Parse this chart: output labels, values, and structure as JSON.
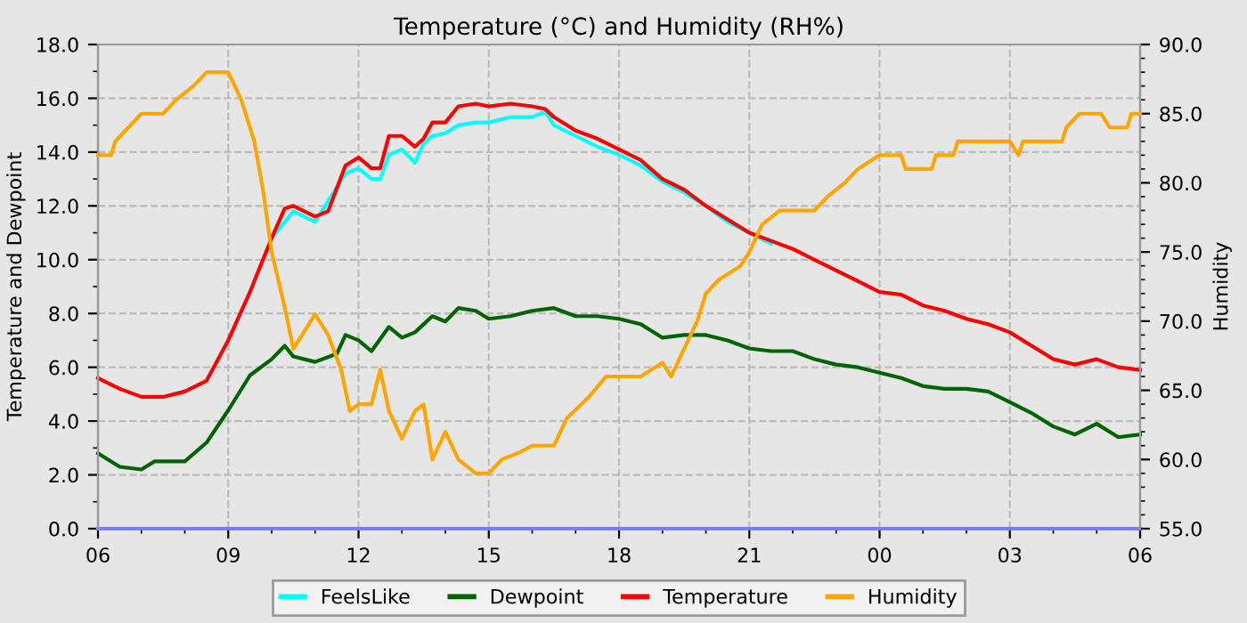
{
  "chart_data": {
    "type": "line",
    "title": "Temperature (°C) and Humidity (RH%)",
    "ylabel": "Temperature and Dewpoint",
    "y2label": "Humidity",
    "xlim": [
      6,
      30
    ],
    "xticks": [
      {
        "value": 6,
        "label": "06"
      },
      {
        "value": 9,
        "label": "09"
      },
      {
        "value": 12,
        "label": "12"
      },
      {
        "value": 15,
        "label": "15"
      },
      {
        "value": 18,
        "label": "18"
      },
      {
        "value": 21,
        "label": "21"
      },
      {
        "value": 24,
        "label": "00"
      },
      {
        "value": 27,
        "label": "03"
      },
      {
        "value": 30,
        "label": "06"
      }
    ],
    "ylim": [
      0,
      18
    ],
    "yticks": [
      {
        "value": 0,
        "label": "0.0"
      },
      {
        "value": 2,
        "label": "2.0"
      },
      {
        "value": 4,
        "label": "4.0"
      },
      {
        "value": 6,
        "label": "6.0"
      },
      {
        "value": 8,
        "label": "8.0"
      },
      {
        "value": 10,
        "label": "10.0"
      },
      {
        "value": 12,
        "label": "12.0"
      },
      {
        "value": 14,
        "label": "14.0"
      },
      {
        "value": 16,
        "label": "16.0"
      },
      {
        "value": 18,
        "label": "18.0"
      }
    ],
    "y2lim": [
      55,
      90
    ],
    "y2ticks": [
      {
        "value": 55,
        "label": "55.0"
      },
      {
        "value": 60,
        "label": "60.0"
      },
      {
        "value": 65,
        "label": "65.0"
      },
      {
        "value": 70,
        "label": "70.0"
      },
      {
        "value": 75,
        "label": "75.0"
      },
      {
        "value": 80,
        "label": "80.0"
      },
      {
        "value": 85,
        "label": "85.0"
      },
      {
        "value": 90,
        "label": "90.0"
      }
    ],
    "grid": true,
    "legend": "bottom",
    "marker": "none",
    "line_style": "solid",
    "series": [
      {
        "color": "#7b7bff",
        "x": [
          6,
          30
        ],
        "values": [
          0,
          0
        ]
      },
      {
        "name": "FeelsLike",
        "color": "#00ffff",
        "x": [
          10.0,
          10.5,
          11.0,
          11.7,
          12.0,
          12.3,
          12.5,
          12.7,
          13.0,
          13.3,
          13.5,
          13.7,
          14.0,
          14.3,
          14.7,
          15.0,
          15.5,
          16.0,
          16.3,
          16.5,
          17.0,
          17.5,
          18.0,
          18.5,
          19.0,
          19.5,
          20.0,
          20.5,
          21.0,
          21.5
        ],
        "values": [
          10.8,
          11.8,
          11.4,
          13.2,
          13.4,
          13.0,
          13.0,
          13.9,
          14.1,
          13.6,
          14.3,
          14.6,
          14.7,
          15.0,
          15.1,
          15.1,
          15.3,
          15.3,
          15.5,
          15.0,
          14.6,
          14.2,
          13.9,
          13.5,
          12.9,
          12.5,
          12.0,
          11.4,
          11.0,
          10.6
        ]
      },
      {
        "name": "Dewpoint",
        "color": "#006400",
        "x": [
          6.0,
          6.5,
          7.0,
          7.3,
          8.0,
          8.5,
          9.0,
          9.5,
          10.0,
          10.3,
          10.5,
          11.0,
          11.5,
          11.7,
          12.0,
          12.3,
          12.7,
          13.0,
          13.3,
          13.7,
          14.0,
          14.3,
          14.7,
          15.0,
          15.5,
          16.0,
          16.5,
          17.0,
          17.5,
          18.0,
          18.5,
          19.0,
          19.5,
          20.0,
          20.5,
          21.0,
          21.5,
          22.0,
          22.5,
          23.0,
          23.5,
          24.0,
          24.5,
          25.0,
          25.5,
          26.0,
          26.5,
          27.0,
          27.5,
          28.0,
          28.5,
          29.0,
          29.5,
          30.0
        ],
        "values": [
          2.8,
          2.3,
          2.2,
          2.5,
          2.5,
          3.2,
          4.4,
          5.7,
          6.3,
          6.8,
          6.4,
          6.2,
          6.5,
          7.2,
          7.0,
          6.6,
          7.5,
          7.1,
          7.3,
          7.9,
          7.7,
          8.2,
          8.1,
          7.8,
          7.9,
          8.1,
          8.2,
          7.9,
          7.9,
          7.8,
          7.6,
          7.1,
          7.2,
          7.2,
          7.0,
          6.7,
          6.6,
          6.6,
          6.3,
          6.1,
          6.0,
          5.8,
          5.6,
          5.3,
          5.2,
          5.2,
          5.1,
          4.7,
          4.3,
          3.8,
          3.5,
          3.9,
          3.4,
          3.5
        ]
      },
      {
        "name": "Temperature",
        "color": "#ff0000",
        "x": [
          6.0,
          6.5,
          7.0,
          7.5,
          8.0,
          8.5,
          9.0,
          9.5,
          10.0,
          10.3,
          10.5,
          11.0,
          11.3,
          11.7,
          12.0,
          12.3,
          12.5,
          12.7,
          13.0,
          13.3,
          13.5,
          13.7,
          14.0,
          14.3,
          14.7,
          15.0,
          15.5,
          16.0,
          16.3,
          16.5,
          17.0,
          17.5,
          18.0,
          18.5,
          19.0,
          19.5,
          20.0,
          20.5,
          21.0,
          21.5,
          22.0,
          22.5,
          23.0,
          23.5,
          24.0,
          24.5,
          25.0,
          25.5,
          26.0,
          26.5,
          27.0,
          27.5,
          28.0,
          28.5,
          29.0,
          29.5,
          30.0
        ],
        "values": [
          5.6,
          5.2,
          4.9,
          4.9,
          5.1,
          5.5,
          7.0,
          8.8,
          10.8,
          11.9,
          12.0,
          11.6,
          11.8,
          13.5,
          13.8,
          13.4,
          13.4,
          14.6,
          14.6,
          14.2,
          14.5,
          15.1,
          15.1,
          15.7,
          15.8,
          15.7,
          15.8,
          15.7,
          15.6,
          15.3,
          14.8,
          14.5,
          14.1,
          13.7,
          13.0,
          12.6,
          12.0,
          11.5,
          11.0,
          10.7,
          10.4,
          10.0,
          9.6,
          9.2,
          8.8,
          8.7,
          8.3,
          8.1,
          7.8,
          7.6,
          7.3,
          6.8,
          6.3,
          6.1,
          6.3,
          6.0,
          5.9
        ]
      },
      {
        "name": "Humidity",
        "color": "#ffa500",
        "axis": "y2",
        "x": [
          6.0,
          6.3,
          6.4,
          6.7,
          7.0,
          7.5,
          7.8,
          8.2,
          8.5,
          9.0,
          9.3,
          9.6,
          9.8,
          10.0,
          10.3,
          10.5,
          10.7,
          11.0,
          11.3,
          11.6,
          11.8,
          12.0,
          12.3,
          12.5,
          12.7,
          13.0,
          13.3,
          13.5,
          13.7,
          14.0,
          14.3,
          14.7,
          15.0,
          15.3,
          15.7,
          16.0,
          16.5,
          16.8,
          17.3,
          17.7,
          18.0,
          18.5,
          19.0,
          19.2,
          19.5,
          19.8,
          20.0,
          20.3,
          20.8,
          21.0,
          21.3,
          21.7,
          22.5,
          22.8,
          23.2,
          23.5,
          24.0,
          24.5,
          24.6,
          25.2,
          25.3,
          25.7,
          25.8,
          27.0,
          27.2,
          27.3,
          28.2,
          28.3,
          28.6,
          29.1,
          29.3,
          29.7,
          29.8,
          30.0
        ],
        "values": [
          82,
          82,
          83,
          84,
          85,
          85,
          86,
          87,
          88,
          88,
          86,
          83,
          79.5,
          75,
          71,
          68,
          69,
          70.5,
          69,
          66.5,
          63.5,
          64,
          64,
          66.5,
          63.5,
          61.5,
          63.5,
          64,
          60,
          62,
          60,
          59,
          59,
          60,
          60.5,
          61,
          61,
          63,
          64.5,
          66,
          66,
          66,
          67,
          66,
          68,
          70,
          72,
          73,
          74,
          75,
          77,
          78,
          78,
          79,
          80,
          81,
          82,
          82,
          81,
          81,
          82,
          82,
          83,
          83,
          82,
          83,
          83,
          84,
          85,
          85,
          84,
          84,
          85,
          85
        ]
      }
    ]
  }
}
